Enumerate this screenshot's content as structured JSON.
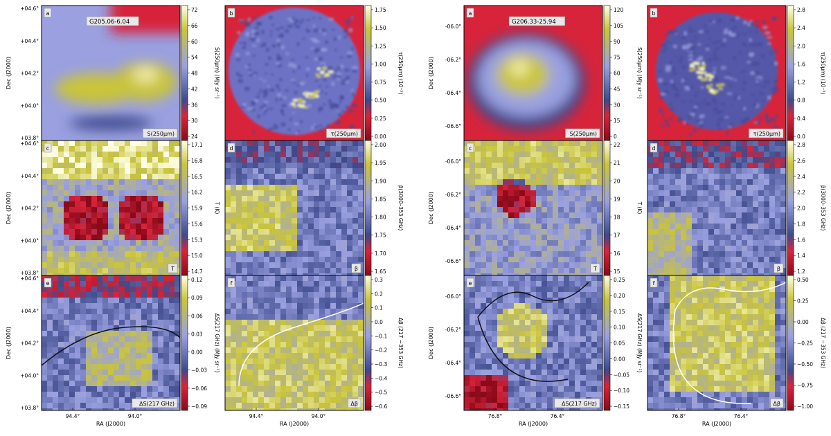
{
  "figure": {
    "columns": [
      {
        "region": "G205.06-6.04",
        "x_ticks": [
          "94.4°",
          "94.0°"
        ],
        "y_ticks": [
          "+04.6°",
          "+04.4°",
          "+04.2°",
          "+04.0°",
          "+03.8°"
        ],
        "xlabel": "RA (J2000)",
        "ylabel": "Dec (J2000)"
      },
      {
        "region": "G206.33-25.94",
        "x_ticks": [
          "76.8°",
          "76.4°"
        ],
        "y_ticks": [
          "-06.0°",
          "-06.2°",
          "-06.4°",
          "-06.6°"
        ],
        "xlabel": "RA (J2000)",
        "ylabel": "Dec (J2000)"
      }
    ],
    "panels": [
      {
        "col": 0,
        "row": 0,
        "sub": 0,
        "letter": "a",
        "quantity": "S(250μm)",
        "cbar_label": "S(250μm) (MJy sr⁻¹)",
        "cmap": "dark-red-blue-yellow",
        "ticks": [
          "72",
          "66",
          "60",
          "54",
          "48",
          "42",
          "36",
          "30",
          "24"
        ]
      },
      {
        "col": 0,
        "row": 0,
        "sub": 1,
        "letter": "b",
        "quantity": "τ(250μm)",
        "cbar_label": "τ(250μm) (10⁻³)",
        "cmap": "dark-red-blue-yellow",
        "ticks": [
          "1.75",
          "1.50",
          "1.25",
          "1.00",
          "0.75",
          "0.50",
          "0.25",
          "0.00"
        ]
      },
      {
        "col": 0,
        "row": 1,
        "sub": 0,
        "letter": "c",
        "quantity": "T",
        "cbar_label": "T (K)",
        "cmap": "dark-red-blue-yellow",
        "ticks": [
          "17.1",
          "16.8",
          "16.5",
          "16.2",
          "15.9",
          "15.6",
          "15.3",
          "15.0",
          "14.7"
        ]
      },
      {
        "col": 0,
        "row": 1,
        "sub": 1,
        "letter": "d",
        "quantity": "β",
        "cbar_label": "β(3000–353 GHz)",
        "cmap": "dark-red-blue-yellow",
        "ticks": [
          "2.00",
          "1.95",
          "1.90",
          "1.85",
          "1.80",
          "1.75",
          "1.70",
          "1.65"
        ]
      },
      {
        "col": 0,
        "row": 2,
        "sub": 0,
        "letter": "e",
        "quantity": "ΔS(217 GHz)",
        "cbar_label": "ΔS(217 GHz) (MJy sr⁻¹)",
        "cmap": "dark-red-blue-yellow",
        "ticks": [
          "0.12",
          "0.09",
          "0.06",
          "0.03",
          "0.00",
          "−0.03",
          "−0.06",
          "−0.09"
        ]
      },
      {
        "col": 0,
        "row": 2,
        "sub": 1,
        "letter": "f",
        "quantity": "Δβ",
        "cbar_label": "Δβ (217 −353 GHz)",
        "cmap": "dark-red-blue-yellow",
        "ticks": [
          "0.3",
          "0.2",
          "0.1",
          "0.0",
          "−0.1",
          "−0.2",
          "−0.3",
          "−0.4",
          "−0.5",
          "−0.6"
        ]
      },
      {
        "col": 1,
        "row": 0,
        "sub": 0,
        "letter": "a",
        "quantity": "S(250μm)",
        "cbar_label": "S(250μm) (MJy sr⁻¹)",
        "cmap": "dark-red-blue-yellow",
        "ticks": [
          "120",
          "105",
          "90",
          "75",
          "60",
          "45",
          "30",
          "15",
          "0"
        ]
      },
      {
        "col": 1,
        "row": 0,
        "sub": 1,
        "letter": "b",
        "quantity": "τ(250μm)",
        "cbar_label": "τ(250μm) (10⁻³)",
        "cmap": "dark-red-blue-yellow",
        "ticks": [
          "2.8",
          "2.4",
          "2.0",
          "1.6",
          "1.2",
          "0.8",
          "0.4",
          "0.0"
        ]
      },
      {
        "col": 1,
        "row": 1,
        "sub": 0,
        "letter": "c",
        "quantity": "T",
        "cbar_label": "T (K)",
        "cmap": "dark-red-blue-yellow",
        "ticks": [
          "22",
          "21",
          "20",
          "19",
          "18",
          "17",
          "16",
          "15"
        ]
      },
      {
        "col": 1,
        "row": 1,
        "sub": 1,
        "letter": "d",
        "quantity": "β",
        "cbar_label": "β(3000–353 GHz)",
        "cmap": "dark-red-blue-yellow",
        "ticks": [
          "2.8",
          "2.6",
          "2.4",
          "2.2",
          "2.0",
          "1.8",
          "1.6",
          "1.4",
          "1.2"
        ]
      },
      {
        "col": 1,
        "row": 2,
        "sub": 0,
        "letter": "e",
        "quantity": "ΔS(217 GHz)",
        "cbar_label": "ΔS(217 GHz) (MJy sr⁻¹)",
        "cmap": "dark-red-blue-yellow",
        "ticks": [
          "0.25",
          "0.20",
          "0.15",
          "0.10",
          "0.05",
          "0.00",
          "−0.05",
          "−0.10",
          "−0.15"
        ]
      },
      {
        "col": 1,
        "row": 2,
        "sub": 1,
        "letter": "f",
        "quantity": "Δβ",
        "cbar_label": "Δβ (217 −353 GHz)",
        "cmap": "dark-red-blue-yellow",
        "ticks": [
          "0.50",
          "0.25",
          "0.00",
          "−0.25",
          "−0.50",
          "−0.75",
          "−1.00"
        ]
      }
    ]
  },
  "colors": {
    "colormap_low": "#8a0a1a",
    "colormap_lowmid": "#d8243a",
    "colormap_mid": "#3d4a8c",
    "colormap_midhigh": "#9aa0e0",
    "colormap_high": "#c9c43a",
    "colormap_top": "#ffffe6"
  },
  "chart_data": [
    {
      "type": "heatmap",
      "panel": "G205.06-6.04 a",
      "title": "",
      "colorbar_label": "S(250μm) (MJy sr⁻¹)",
      "colorbar_range": [
        20,
        72
      ],
      "colorbar_ticks": [
        72,
        66,
        60,
        54,
        48,
        42,
        36,
        30,
        24
      ],
      "xlabel": "",
      "ylabel": "Dec (J2000)",
      "y_ticks": [
        "+04.6°",
        "+04.4°",
        "+04.2°",
        "+04.0°",
        "+03.8°"
      ]
    },
    {
      "type": "heatmap",
      "panel": "G205.06-6.04 b",
      "colorbar_label": "τ(250μm) (10⁻³)",
      "colorbar_range": [
        -0.1,
        1.95
      ],
      "colorbar_ticks": [
        1.75,
        1.5,
        1.25,
        1.0,
        0.75,
        0.5,
        0.25,
        0.0
      ]
    },
    {
      "type": "heatmap",
      "panel": "G205.06-6.04 c",
      "colorbar_label": "T (K)",
      "colorbar_range": [
        14.6,
        17.2
      ],
      "colorbar_ticks": [
        17.1,
        16.8,
        16.5,
        16.2,
        15.9,
        15.6,
        15.3,
        15.0,
        14.7
      ]
    },
    {
      "type": "heatmap",
      "panel": "G205.06-6.04 d",
      "colorbar_label": "β(3000–353 GHz)",
      "colorbar_range": [
        1.62,
        2.0
      ],
      "colorbar_ticks": [
        2.0,
        1.95,
        1.9,
        1.85,
        1.8,
        1.75,
        1.7,
        1.65
      ]
    },
    {
      "type": "heatmap",
      "panel": "G205.06-6.04 e",
      "colorbar_label": "ΔS(217 GHz) (MJy sr⁻¹)",
      "colorbar_range": [
        -0.11,
        0.14
      ],
      "colorbar_ticks": [
        0.12,
        0.09,
        0.06,
        0.03,
        0.0,
        -0.03,
        -0.06,
        -0.09
      ],
      "xlabel": "RA (J2000)",
      "x_ticks": [
        "94.4°",
        "94.0°"
      ]
    },
    {
      "type": "heatmap",
      "panel": "G205.06-6.04 f",
      "colorbar_label": "Δβ (217 −353 GHz)",
      "colorbar_range": [
        -0.65,
        0.3
      ],
      "colorbar_ticks": [
        0.3,
        0.2,
        0.1,
        0.0,
        -0.1,
        -0.2,
        -0.3,
        -0.4,
        -0.5,
        -0.6
      ],
      "xlabel": "RA (J2000)",
      "x_ticks": [
        "94.4°",
        "94.0°"
      ]
    },
    {
      "type": "heatmap",
      "panel": "G206.33-25.94 a",
      "colorbar_label": "S(250μm) (MJy sr⁻¹)",
      "colorbar_range": [
        -5,
        125
      ],
      "colorbar_ticks": [
        120,
        105,
        90,
        75,
        60,
        45,
        30,
        15,
        0
      ],
      "ylabel": "Dec (J2000)",
      "y_ticks": [
        "-06.0°",
        "-06.2°",
        "-06.4°",
        "-06.6°"
      ]
    },
    {
      "type": "heatmap",
      "panel": "G206.33-25.94 b",
      "colorbar_label": "τ(250μm) (10⁻³)",
      "colorbar_range": [
        -0.2,
        2.9
      ],
      "colorbar_ticks": [
        2.8,
        2.4,
        2.0,
        1.6,
        1.2,
        0.8,
        0.4,
        0.0
      ]
    },
    {
      "type": "heatmap",
      "panel": "G206.33-25.94 c",
      "colorbar_label": "T (K)",
      "colorbar_range": [
        14.5,
        23
      ],
      "colorbar_ticks": [
        22,
        21,
        20,
        19,
        18,
        17,
        16,
        15
      ]
    },
    {
      "type": "heatmap",
      "panel": "G206.33-25.94 d",
      "colorbar_label": "β(3000–353 GHz)",
      "colorbar_range": [
        1.1,
        2.9
      ],
      "colorbar_ticks": [
        2.8,
        2.6,
        2.4,
        2.2,
        2.0,
        1.8,
        1.6,
        1.4,
        1.2
      ]
    },
    {
      "type": "heatmap",
      "panel": "G206.33-25.94 e",
      "colorbar_label": "ΔS(217 GHz) (MJy sr⁻¹)",
      "colorbar_range": [
        -0.16,
        0.27
      ],
      "colorbar_ticks": [
        0.25,
        0.2,
        0.15,
        0.1,
        0.05,
        0.0,
        -0.05,
        -0.1,
        -0.15
      ],
      "xlabel": "RA (J2000)",
      "x_ticks": [
        "76.8°",
        "76.4°"
      ]
    },
    {
      "type": "heatmap",
      "panel": "G206.33-25.94 f",
      "colorbar_label": "Δβ (217 −353 GHz)",
      "colorbar_range": [
        -1.1,
        0.65
      ],
      "colorbar_ticks": [
        0.5,
        0.25,
        0.0,
        -0.25,
        -0.5,
        -0.75,
        -1.0
      ],
      "xlabel": "RA (J2000)",
      "x_ticks": [
        "76.8°",
        "76.4°"
      ]
    }
  ]
}
